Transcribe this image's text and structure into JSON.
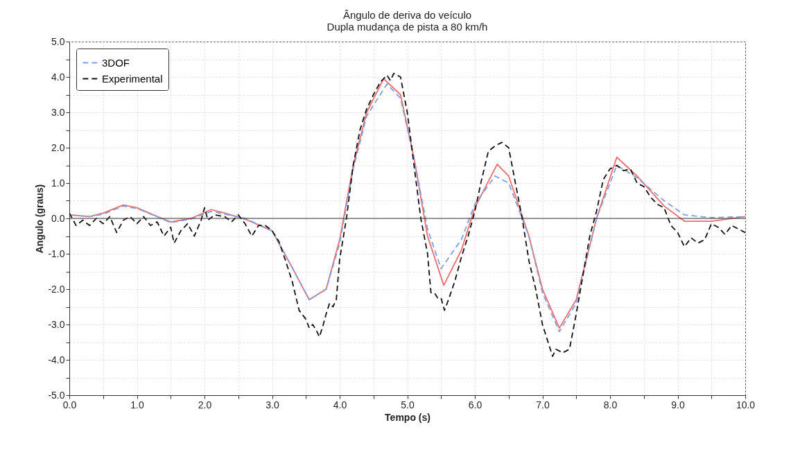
{
  "chart_data": {
    "type": "line",
    "title": "Ângulo de deriva do veículo",
    "subtitle": "Dupla mudança de pista a 80 km/h",
    "xlabel": "Tempo (s)",
    "ylabel": "Angulo (graus)",
    "xlim": [
      0,
      10
    ],
    "ylim": [
      -5,
      5
    ],
    "xticks": [
      {
        "value": 0,
        "label": "0.0"
      },
      {
        "value": 0.5,
        "label": null
      },
      {
        "value": 1,
        "label": "1.0"
      },
      {
        "value": 1.5,
        "label": null
      },
      {
        "value": 2,
        "label": "2.0"
      },
      {
        "value": 2.5,
        "label": null
      },
      {
        "value": 3,
        "label": "3.0"
      },
      {
        "value": 3.5,
        "label": null
      },
      {
        "value": 4,
        "label": "4.0"
      },
      {
        "value": 4.5,
        "label": null
      },
      {
        "value": 5,
        "label": "5.0"
      },
      {
        "value": 5.5,
        "label": null
      },
      {
        "value": 6,
        "label": "6.0"
      },
      {
        "value": 6.5,
        "label": null
      },
      {
        "value": 7,
        "label": "7.0"
      },
      {
        "value": 7.5,
        "label": null
      },
      {
        "value": 8,
        "label": "8.0"
      },
      {
        "value": 8.5,
        "label": null
      },
      {
        "value": 9,
        "label": "9.0"
      },
      {
        "value": 9.5,
        "label": null
      },
      {
        "value": 10,
        "label": "10.0"
      }
    ],
    "yticks": [
      {
        "value": -5,
        "label": "-5.0"
      },
      {
        "value": -4.5,
        "label": null
      },
      {
        "value": -4,
        "label": "-4.0"
      },
      {
        "value": -3.5,
        "label": null
      },
      {
        "value": -3,
        "label": "-3.0"
      },
      {
        "value": -2.5,
        "label": null
      },
      {
        "value": -2,
        "label": "-2.0"
      },
      {
        "value": -1.5,
        "label": null
      },
      {
        "value": -1,
        "label": "-1.0"
      },
      {
        "value": -0.5,
        "label": null
      },
      {
        "value": 0,
        "label": "0.0"
      },
      {
        "value": 0.5,
        "label": null
      },
      {
        "value": 1,
        "label": "1.0"
      },
      {
        "value": 1.5,
        "label": null
      },
      {
        "value": 2,
        "label": "2.0"
      },
      {
        "value": 2.5,
        "label": null
      },
      {
        "value": 3,
        "label": "3.0"
      },
      {
        "value": 3.5,
        "label": null
      },
      {
        "value": 4,
        "label": "4.0"
      },
      {
        "value": 4.5,
        "label": null
      },
      {
        "value": 5,
        "label": "5.0"
      }
    ],
    "grid": true,
    "legend": "top left",
    "ref_lines": [
      {
        "axis": "y",
        "value": 0,
        "label": null,
        "color": "#333333"
      }
    ],
    "series": [
      {
        "color": "#f06a6a",
        "line_style": "solid",
        "x": [
          0,
          0.3,
          0.5,
          0.8,
          1.0,
          1.3,
          1.5,
          1.8,
          2.1,
          2.3,
          2.6,
          3.0,
          3.3,
          3.55,
          3.8,
          4.0,
          4.2,
          4.4,
          4.65,
          4.9,
          5.1,
          5.3,
          5.54,
          5.8,
          6.0,
          6.33,
          6.5,
          6.8,
          7.0,
          7.25,
          7.5,
          7.8,
          8.1,
          8.4,
          8.8,
          9.1,
          9.5,
          10.0
        ],
        "values": [
          0.1,
          0.05,
          0.15,
          0.38,
          0.3,
          0.05,
          -0.1,
          0.0,
          0.25,
          0.15,
          -0.02,
          -0.35,
          -1.4,
          -2.3,
          -2.0,
          -0.6,
          1.5,
          3.0,
          3.95,
          3.5,
          1.7,
          -0.5,
          -1.89,
          -0.9,
          0.3,
          1.53,
          1.2,
          -0.5,
          -2.0,
          -3.1,
          -2.3,
          0.0,
          1.73,
          1.2,
          0.35,
          -0.08,
          -0.08,
          0.05
        ]
      },
      {
        "name": "3DOF",
        "color": "#7f9ee0",
        "line_style": "dashed",
        "x": [
          0,
          0.3,
          0.5,
          0.8,
          1.0,
          1.3,
          1.5,
          1.8,
          2.1,
          2.3,
          2.6,
          3.0,
          3.3,
          3.55,
          3.8,
          4.0,
          4.2,
          4.4,
          4.7,
          4.9,
          5.1,
          5.3,
          5.5,
          5.8,
          6.0,
          6.3,
          6.5,
          6.8,
          7.0,
          7.25,
          7.5,
          7.8,
          8.1,
          8.4,
          8.8,
          9.1,
          9.5,
          10.0
        ],
        "values": [
          0.1,
          0.05,
          0.12,
          0.35,
          0.28,
          0.05,
          -0.12,
          -0.02,
          0.2,
          0.12,
          0.0,
          -0.35,
          -1.4,
          -2.3,
          -2.0,
          -0.7,
          1.4,
          2.9,
          3.8,
          3.4,
          1.7,
          -0.3,
          -1.42,
          -0.6,
          0.4,
          1.2,
          1.0,
          -0.5,
          -2.1,
          -3.2,
          -2.4,
          0.0,
          1.5,
          1.15,
          0.5,
          0.1,
          0.02,
          0.05
        ]
      },
      {
        "name": "Experimental",
        "color": "#111111",
        "line_style": "dashed",
        "x": [
          0,
          0.1,
          0.2,
          0.3,
          0.4,
          0.5,
          0.6,
          0.7,
          0.8,
          0.9,
          1.0,
          1.1,
          1.2,
          1.3,
          1.4,
          1.5,
          1.55,
          1.65,
          1.75,
          1.85,
          1.95,
          2.0,
          2.05,
          2.15,
          2.3,
          2.4,
          2.5,
          2.6,
          2.7,
          2.8,
          2.9,
          3.0,
          3.1,
          3.2,
          3.3,
          3.4,
          3.5,
          3.55,
          3.6,
          3.65,
          3.7,
          3.75,
          3.8,
          3.85,
          3.9,
          3.95,
          4.0,
          4.1,
          4.2,
          4.3,
          4.4,
          4.5,
          4.6,
          4.7,
          4.75,
          4.8,
          4.9,
          5.0,
          5.1,
          5.2,
          5.3,
          5.35,
          5.4,
          5.45,
          5.5,
          5.55,
          5.6,
          5.7,
          5.8,
          5.9,
          6.0,
          6.1,
          6.2,
          6.3,
          6.4,
          6.5,
          6.6,
          6.7,
          6.8,
          6.9,
          7.0,
          7.1,
          7.15,
          7.2,
          7.3,
          7.4,
          7.5,
          7.6,
          7.7,
          7.8,
          7.9,
          8.0,
          8.1,
          8.2,
          8.3,
          8.4,
          8.5,
          8.6,
          8.7,
          8.8,
          8.9,
          9.0,
          9.1,
          9.2,
          9.3,
          9.4,
          9.5,
          9.6,
          9.7,
          9.8,
          9.9,
          10.0
        ],
        "values": [
          0.15,
          -0.2,
          -0.05,
          -0.2,
          0.0,
          -0.15,
          0.05,
          -0.4,
          -0.05,
          0.05,
          -0.15,
          0.05,
          -0.2,
          -0.1,
          -0.5,
          -0.25,
          -0.7,
          -0.35,
          -0.15,
          -0.5,
          -0.05,
          0.3,
          -0.05,
          0.1,
          0.05,
          -0.1,
          0.1,
          -0.15,
          -0.5,
          -0.2,
          -0.2,
          -0.35,
          -0.65,
          -1.2,
          -1.8,
          -2.6,
          -2.85,
          -3.1,
          -3.0,
          -3.15,
          -3.35,
          -3.05,
          -2.7,
          -2.4,
          -2.5,
          -2.3,
          -1.15,
          0.0,
          1.5,
          2.5,
          3.1,
          3.5,
          3.85,
          4.05,
          3.9,
          4.1,
          4.0,
          3.0,
          1.5,
          0.0,
          -1.0,
          -2.1,
          -2.1,
          -2.25,
          -2.25,
          -2.6,
          -2.35,
          -1.8,
          -1.1,
          -0.5,
          0.2,
          1.1,
          1.9,
          2.05,
          2.15,
          2.0,
          1.0,
          0.0,
          -1.2,
          -2.0,
          -3.0,
          -3.6,
          -3.9,
          -3.7,
          -3.8,
          -3.7,
          -2.7,
          -1.6,
          -0.5,
          0.2,
          1.1,
          1.4,
          1.5,
          1.35,
          1.4,
          1.0,
          0.9,
          0.6,
          0.4,
          0.3,
          -0.2,
          -0.4,
          -0.8,
          -0.55,
          -0.7,
          -0.6,
          -0.15,
          -0.25,
          -0.45,
          -0.2,
          -0.3,
          -0.4
        ]
      }
    ]
  }
}
